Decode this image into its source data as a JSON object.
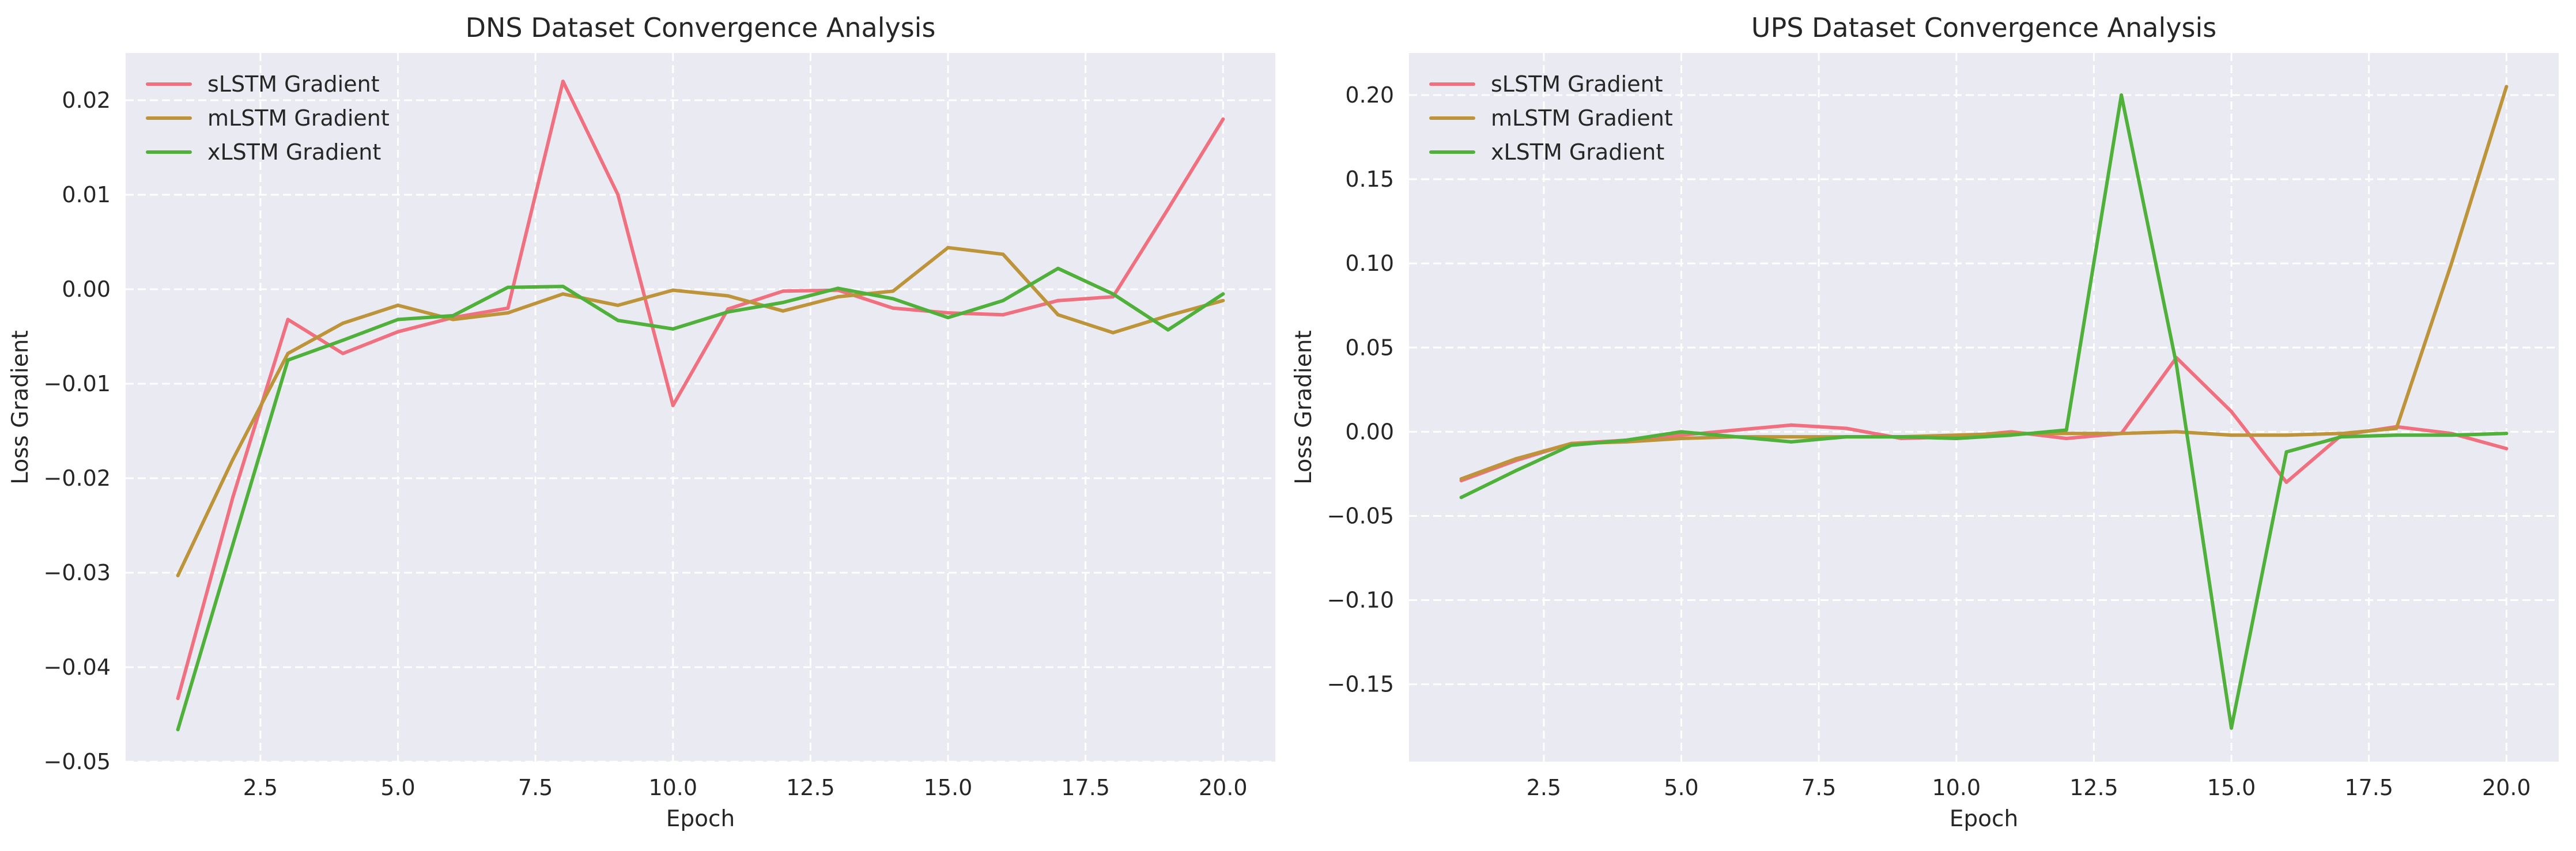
{
  "chart_data": [
    {
      "type": "line",
      "title": "DNS Dataset Convergence Analysis",
      "xlabel": "Epoch",
      "ylabel": "Loss Gradient",
      "xlim": [
        0.05,
        20.95
      ],
      "ylim": [
        -0.05,
        0.025
      ],
      "xticks": [
        2.5,
        5.0,
        7.5,
        10.0,
        12.5,
        15.0,
        17.5,
        20.0
      ],
      "xtick_labels": [
        "2.5",
        "5.0",
        "7.5",
        "10.0",
        "12.5",
        "15.0",
        "17.5",
        "20.0"
      ],
      "yticks": [
        -0.05,
        -0.04,
        -0.03,
        -0.02,
        -0.01,
        0.0,
        0.01,
        0.02
      ],
      "ytick_labels": [
        "−0.05",
        "−0.04",
        "−0.03",
        "−0.02",
        "−0.01",
        "0.00",
        "0.01",
        "0.02"
      ],
      "grid": true,
      "legend": "top-left",
      "x": [
        1,
        2,
        3,
        4,
        5,
        6,
        7,
        8,
        9,
        10,
        11,
        12,
        13,
        14,
        15,
        16,
        17,
        18,
        19,
        20
      ],
      "series": [
        {
          "name": "sLSTM Gradient",
          "color": "#f1707f",
          "values": [
            -0.0433,
            -0.022,
            -0.0032,
            -0.0068,
            -0.0045,
            -0.003,
            -0.002,
            0.022,
            0.01,
            -0.0123,
            -0.0021,
            -0.0002,
            -0.0001,
            -0.002,
            -0.0025,
            -0.0027,
            -0.0012,
            -0.0008,
            0.0085,
            0.018
          ]
        },
        {
          "name": "mLSTM Gradient",
          "color": "#bd9439",
          "values": [
            -0.0303,
            -0.018,
            -0.0068,
            -0.0036,
            -0.0017,
            -0.0032,
            -0.0025,
            -0.0005,
            -0.0017,
            -0.0001,
            -0.0007,
            -0.0023,
            -0.0008,
            -0.0002,
            0.0044,
            0.0037,
            -0.0027,
            -0.0046,
            -0.0028,
            -0.0012
          ]
        },
        {
          "name": "xLSTM Gradient",
          "color": "#4fb03a",
          "values": [
            -0.0466,
            -0.027,
            -0.0075,
            -0.0054,
            -0.0032,
            -0.0028,
            0.0002,
            0.0003,
            -0.0033,
            -0.0042,
            -0.0024,
            -0.0014,
            0.0001,
            -0.001,
            -0.003,
            -0.0012,
            0.0022,
            -0.0005,
            -0.0043,
            -0.0005
          ]
        }
      ]
    },
    {
      "type": "line",
      "title": "UPS Dataset Convergence Analysis",
      "xlabel": "Epoch",
      "ylabel": "Loss Gradient",
      "xlim": [
        0.05,
        20.95
      ],
      "ylim": [
        -0.196,
        0.225
      ],
      "xticks": [
        2.5,
        5.0,
        7.5,
        10.0,
        12.5,
        15.0,
        17.5,
        20.0
      ],
      "xtick_labels": [
        "2.5",
        "5.0",
        "7.5",
        "10.0",
        "12.5",
        "15.0",
        "17.5",
        "20.0"
      ],
      "yticks": [
        -0.15,
        -0.1,
        -0.05,
        0.0,
        0.05,
        0.1,
        0.15,
        0.2
      ],
      "ytick_labels": [
        "−0.15",
        "−0.10",
        "−0.05",
        "0.00",
        "0.05",
        "0.10",
        "0.15",
        "0.20"
      ],
      "grid": true,
      "legend": "top-left",
      "x": [
        1,
        2,
        3,
        4,
        5,
        6,
        7,
        8,
        9,
        10,
        11,
        12,
        13,
        14,
        15,
        16,
        17,
        18,
        19,
        20
      ],
      "series": [
        {
          "name": "sLSTM Gradient",
          "color": "#f1707f",
          "values": [
            -0.029,
            -0.017,
            -0.007,
            -0.005,
            -0.002,
            0.001,
            0.004,
            0.002,
            -0.004,
            -0.003,
            0.0,
            -0.004,
            -0.001,
            0.044,
            0.012,
            -0.03,
            -0.002,
            0.003,
            -0.001,
            -0.01
          ]
        },
        {
          "name": "mLSTM Gradient",
          "color": "#bd9439",
          "values": [
            -0.028,
            -0.016,
            -0.007,
            -0.006,
            -0.004,
            -0.003,
            -0.003,
            -0.003,
            -0.003,
            -0.002,
            -0.001,
            -0.001,
            -0.001,
            0.0,
            -0.002,
            -0.002,
            -0.001,
            0.002,
            0.1,
            0.205
          ]
        },
        {
          "name": "xLSTM Gradient",
          "color": "#4fb03a",
          "values": [
            -0.039,
            -0.023,
            -0.008,
            -0.005,
            0.0,
            -0.003,
            -0.006,
            -0.003,
            -0.003,
            -0.004,
            -0.002,
            0.001,
            0.2,
            0.04,
            -0.176,
            -0.012,
            -0.003,
            -0.002,
            -0.002,
            -0.001
          ]
        }
      ]
    }
  ]
}
